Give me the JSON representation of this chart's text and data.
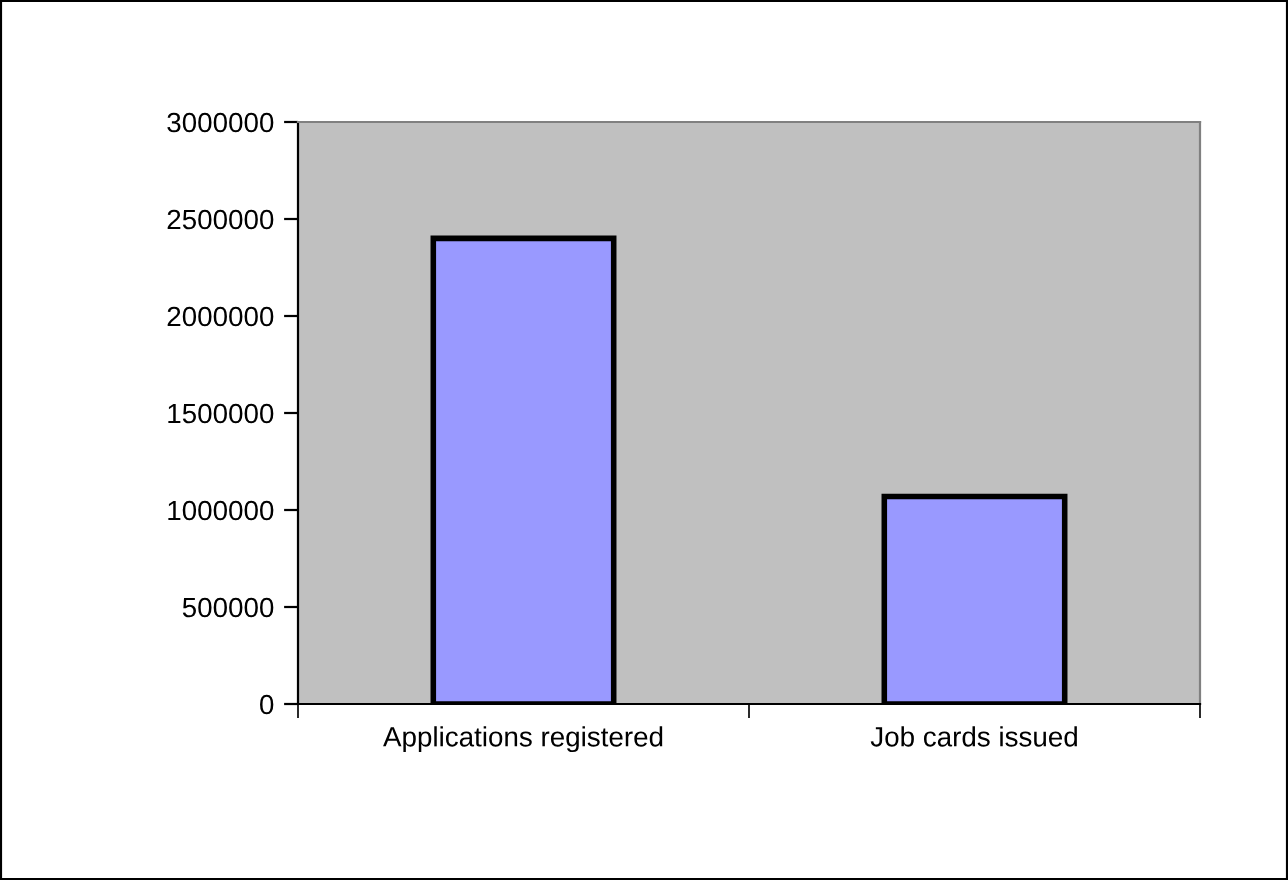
{
  "chart_data": {
    "type": "bar",
    "categories": [
      "Applications registered",
      "Job cards issued"
    ],
    "values": [
      2400000,
      1070000
    ],
    "color": "#9999ff",
    "ylim": [
      0,
      3000000
    ],
    "yticks": [
      0,
      500000,
      1000000,
      1500000,
      2000000,
      2500000,
      3000000
    ],
    "grid": false,
    "legend": false
  }
}
